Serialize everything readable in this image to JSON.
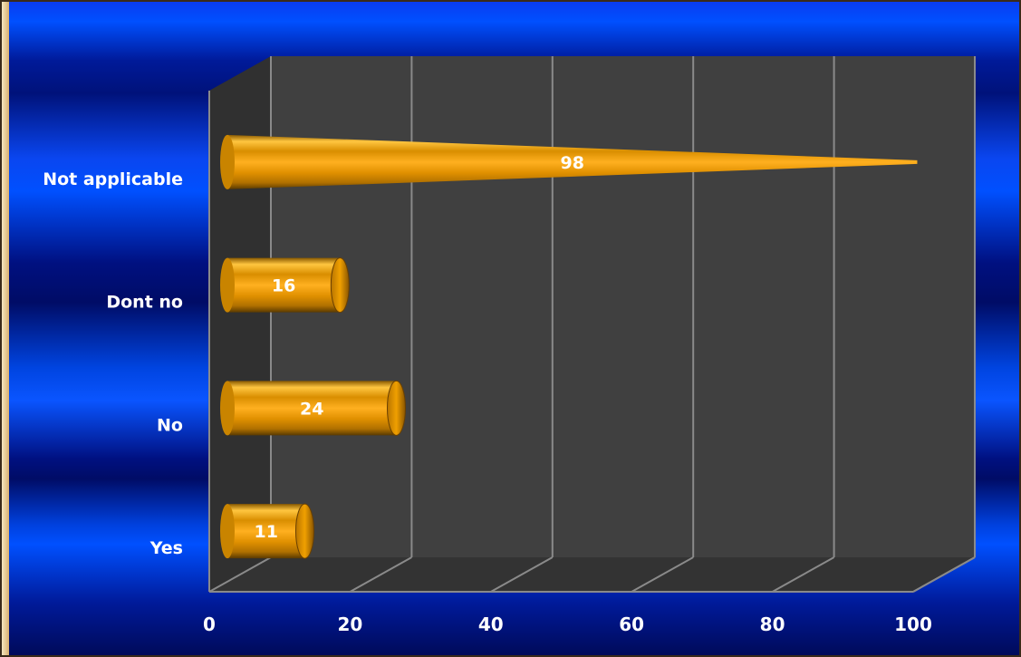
{
  "chart_data": {
    "type": "bar",
    "orientation": "horizontal",
    "style": "3d-cylinder",
    "categories": [
      "Yes",
      "No",
      "Dont no",
      "Not applicable"
    ],
    "values": [
      11,
      24,
      16,
      98
    ],
    "data_labels": [
      "11",
      "24",
      "16",
      "98"
    ],
    "xlim": [
      0,
      100
    ],
    "xticks": [
      "0",
      "20",
      "40",
      "60",
      "80",
      "100"
    ],
    "grid": true,
    "legend": "none",
    "colors": {
      "bar": "#f0a000",
      "wall": "#404040",
      "side": "#303030",
      "background": "#0050ff"
    }
  }
}
